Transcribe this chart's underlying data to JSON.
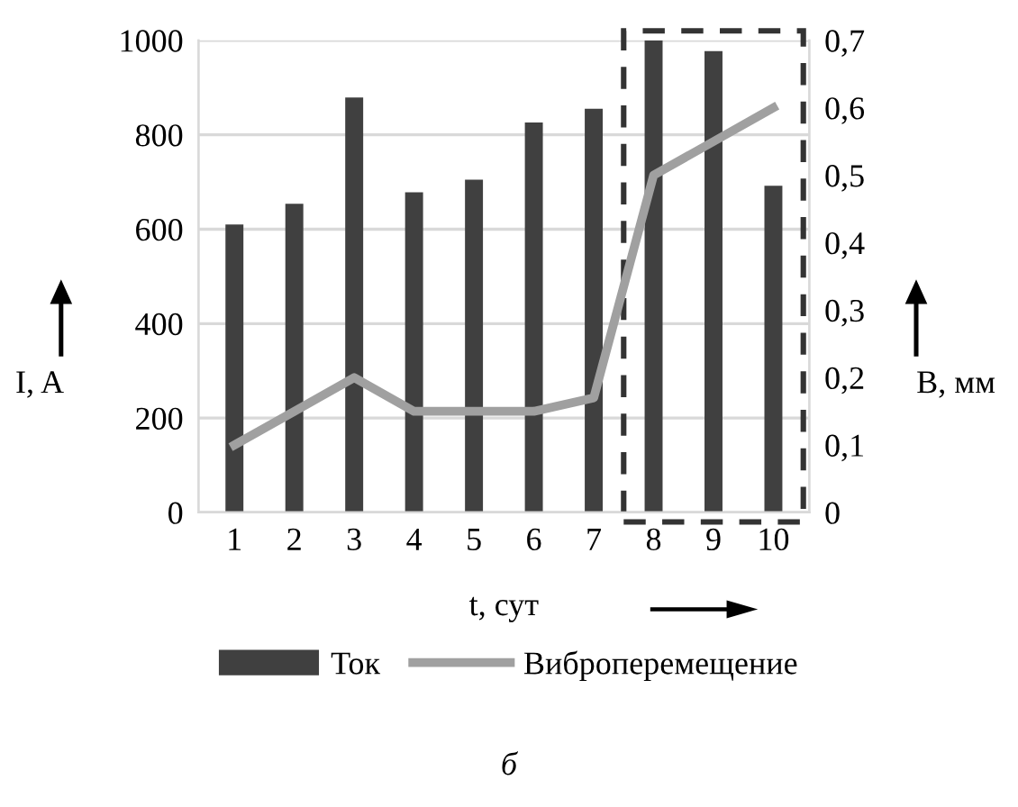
{
  "chart_data": {
    "type": "bar",
    "categories": [
      "1",
      "2",
      "3",
      "4",
      "5",
      "6",
      "7",
      "8",
      "9",
      "10"
    ],
    "xlabel": "t, сут",
    "ylabel": "I, A",
    "y2label": "B, мм",
    "series": [
      {
        "name": "Ток",
        "color": "#404040",
        "values": [
          610,
          654,
          879,
          678,
          705,
          826,
          855,
          1000,
          977,
          692
        ]
      },
      {
        "name": "Виброперемещение",
        "type": "line",
        "axis": "y2",
        "color": "#a0a0a0",
        "values": [
          0.1,
          0.15,
          0.2,
          0.15,
          0.15,
          0.15,
          0.17,
          0.5,
          0.55,
          0.6
        ]
      }
    ],
    "ylim": [
      0,
      1000
    ],
    "yticks": [
      0,
      200,
      400,
      600,
      800,
      1000
    ],
    "y2lim": [
      0,
      0.7
    ],
    "y2ticks": [
      0,
      {
        "value": 0.1,
        "label": "0,1"
      },
      {
        "value": 0.2,
        "label": "0,2"
      },
      {
        "value": 0.3,
        "label": "0,3"
      },
      {
        "value": 0.4,
        "label": "0,4"
      },
      {
        "value": 0.5,
        "label": "0,5"
      },
      {
        "value": 0.6,
        "label": "0,6"
      },
      {
        "value": 0.7,
        "label": "0,7"
      }
    ],
    "grid": "y",
    "legend": "bottom",
    "marker": "none",
    "line_style": "solid",
    "annotations": [
      "б"
    ]
  }
}
